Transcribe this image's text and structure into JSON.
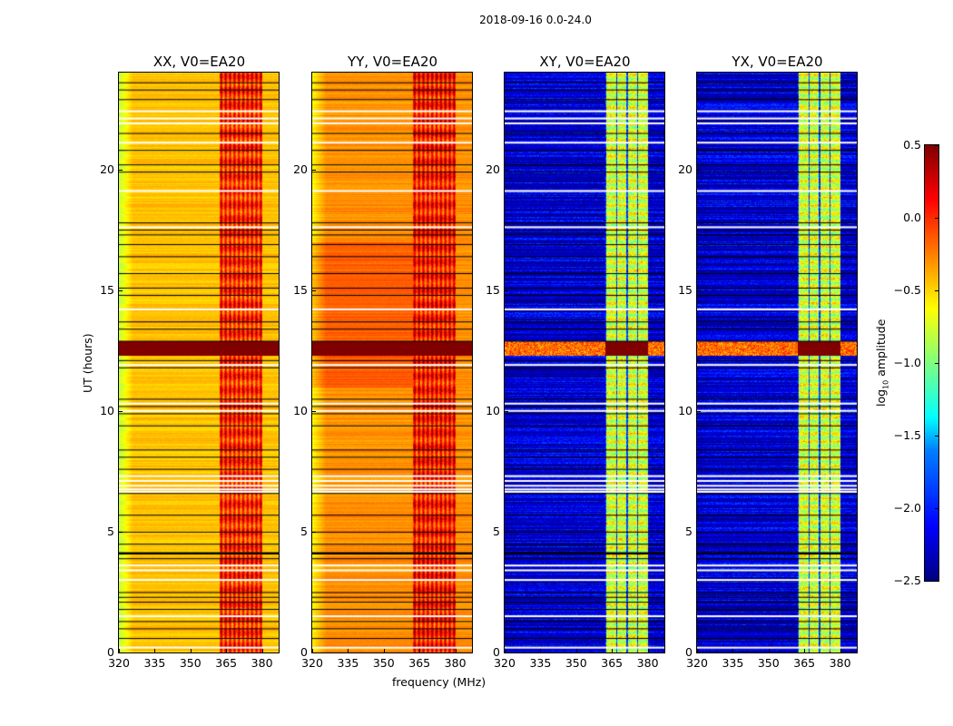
{
  "chart_data": {
    "type": "heatmap",
    "title": "2018-09-16 0.0-24.0",
    "xlabel": "frequency (MHz)",
    "ylabel": "UT (hours)",
    "xlim": [
      320,
      387
    ],
    "ylim": [
      0,
      24
    ],
    "xticks": [
      "320",
      "335",
      "350",
      "365",
      "380"
    ],
    "yticks": [
      "0",
      "5",
      "10",
      "15",
      "20"
    ],
    "colorbar": {
      "label": "log",
      "label_sub": "10",
      "label_rest": " amplitude",
      "range": [
        -2.5,
        0.5
      ],
      "ticks": [
        "0.5",
        "0.0",
        "−0.5",
        "−1.0",
        "−1.5",
        "−2.0",
        "−2.5"
      ],
      "colormap": "jet"
    },
    "rfi_band_mhz": [
      362,
      380
    ],
    "strong_rfi_hours": [
      12.3,
      12.9
    ],
    "flag_lines_black_hours": [
      23.6,
      23.3,
      22.9,
      21.5,
      20.8,
      20.2,
      19.9,
      17.8,
      17.5,
      17.3,
      16.9,
      16.4,
      15.7,
      15.1,
      14.8,
      13.7,
      13.4,
      12.9,
      12.1,
      11.8,
      10.5,
      10.2,
      9.9,
      9.4,
      8.4,
      8.1,
      7.6,
      6.6,
      5.7,
      5.0,
      4.5,
      4.15,
      3.9,
      2.5,
      2.3,
      2.1,
      1.8,
      1.3,
      1.0,
      0.6
    ],
    "flag_lines_white_hours": [
      22.4,
      22.1,
      21.9,
      21.1,
      19.1,
      17.6,
      14.2,
      11.9,
      10.3,
      10.0,
      7.3,
      7.1,
      6.9,
      6.75,
      6.65,
      3.6,
      3.4,
      3.0,
      1.5,
      0.2
    ],
    "panels": [
      {
        "title": "XX, V0=EA20",
        "base": -0.45,
        "band": 0.0,
        "edge": -0.8
      },
      {
        "title": "YY, V0=EA20",
        "base": -0.3,
        "band": 0.05,
        "edge": -0.6
      },
      {
        "title": "XY, V0=EA20",
        "base": -2.25,
        "band": -0.75,
        "edge": -2.3
      },
      {
        "title": "YX, V0=EA20",
        "base": -2.25,
        "band": -0.75,
        "edge": -2.3
      }
    ]
  }
}
